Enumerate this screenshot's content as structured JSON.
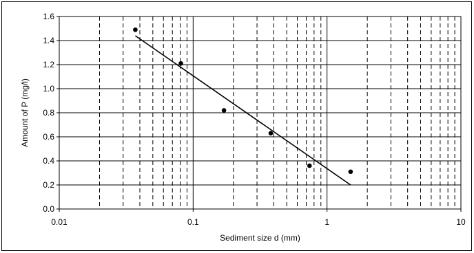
{
  "chart_data": {
    "type": "scatter",
    "title": "",
    "xlabel": "Sediment size d (mm)",
    "ylabel": "Amount of P (mg/l)",
    "x_scale": "log",
    "xlim": [
      0.01,
      10
    ],
    "ylim": [
      0,
      1.6
    ],
    "x_ticks": [
      0.01,
      0.1,
      1,
      10
    ],
    "x_tick_labels": [
      "0.01",
      "0.1",
      "1",
      "10"
    ],
    "y_ticks": [
      0,
      0.2,
      0.4,
      0.6,
      0.8,
      1.0,
      1.2,
      1.4,
      1.6
    ],
    "y_tick_labels": [
      "0.0",
      "0.2",
      "0.4",
      "0.6",
      "0.8",
      "1.0",
      "1.2",
      "1.4",
      "1.6"
    ],
    "grid": {
      "major_y": true,
      "major_x": true,
      "minor_x_dashed": true
    },
    "legend": "none",
    "series": [
      {
        "points": [
          {
            "x": 0.037,
            "y": 1.49
          },
          {
            "x": 0.081,
            "y": 1.21
          },
          {
            "x": 0.17,
            "y": 0.82
          },
          {
            "x": 0.38,
            "y": 0.63
          },
          {
            "x": 0.74,
            "y": 0.36
          },
          {
            "x": 1.5,
            "y": 0.31
          }
        ],
        "marker_color": "#000000"
      }
    ],
    "trendline": {
      "type": "logarithmic",
      "from": {
        "x": 0.037,
        "y": 1.44
      },
      "to": {
        "x": 1.5,
        "y": 0.2
      },
      "color": "#000000"
    }
  }
}
